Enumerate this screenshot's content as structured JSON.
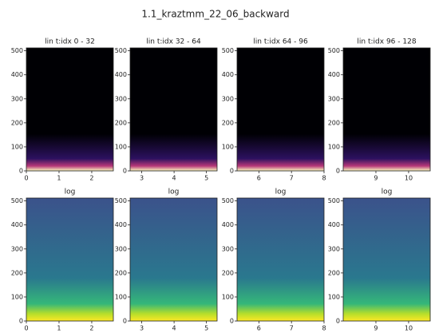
{
  "title": "1.1_kraztmm_22_06_backward",
  "chart_data": [
    {
      "type": "heatmap",
      "title": "lin t:idx 0 - 32",
      "colormap": "magma",
      "xlim": [
        0,
        2.66
      ],
      "xticks": [
        0,
        1,
        2
      ],
      "ylim": [
        0,
        512
      ],
      "yticks": [
        0,
        100,
        200,
        300,
        400,
        500
      ]
    },
    {
      "type": "heatmap",
      "title": "lin t:idx 32 - 64",
      "colormap": "magma",
      "xlim": [
        2.64,
        5.33
      ],
      "xticks": [
        3,
        4,
        5
      ],
      "ylim": [
        0,
        512
      ],
      "yticks": [
        0,
        100,
        200,
        300,
        400,
        500
      ]
    },
    {
      "type": "heatmap",
      "title": "lin t:idx 64 - 96",
      "colormap": "magma",
      "xlim": [
        5.33,
        8.0
      ],
      "xticks": [
        6,
        7,
        8
      ],
      "ylim": [
        0,
        512
      ],
      "yticks": [
        0,
        100,
        200,
        300,
        400,
        500
      ]
    },
    {
      "type": "heatmap",
      "title": "lin t:idx 96 - 128",
      "colormap": "magma",
      "xlim": [
        8.0,
        10.66
      ],
      "xticks": [
        9,
        10
      ],
      "ylim": [
        0,
        512
      ],
      "yticks": [
        0,
        100,
        200,
        300,
        400,
        500
      ]
    },
    {
      "type": "heatmap",
      "title": "log",
      "colormap": "viridis",
      "xlim": [
        0,
        2.66
      ],
      "xticks": [
        0,
        1,
        2
      ],
      "ylim": [
        0,
        512
      ],
      "yticks": [
        0,
        100,
        200,
        300,
        400,
        500
      ]
    },
    {
      "type": "heatmap",
      "title": "log",
      "colormap": "viridis",
      "xlim": [
        2.64,
        5.33
      ],
      "xticks": [
        3,
        4,
        5
      ],
      "ylim": [
        0,
        512
      ],
      "yticks": [
        0,
        100,
        200,
        300,
        400,
        500
      ]
    },
    {
      "type": "heatmap",
      "title": "log",
      "colormap": "viridis",
      "xlim": [
        5.33,
        8.0
      ],
      "xticks": [
        6,
        7,
        8
      ],
      "ylim": [
        0,
        512
      ],
      "yticks": [
        0,
        100,
        200,
        300,
        400,
        500
      ]
    },
    {
      "type": "heatmap",
      "title": "log",
      "colormap": "viridis",
      "xlim": [
        8.0,
        10.66
      ],
      "xticks": [
        9,
        10
      ],
      "ylim": [
        0,
        512
      ],
      "yticks": [
        0,
        100,
        200,
        300,
        400,
        500
      ]
    }
  ]
}
